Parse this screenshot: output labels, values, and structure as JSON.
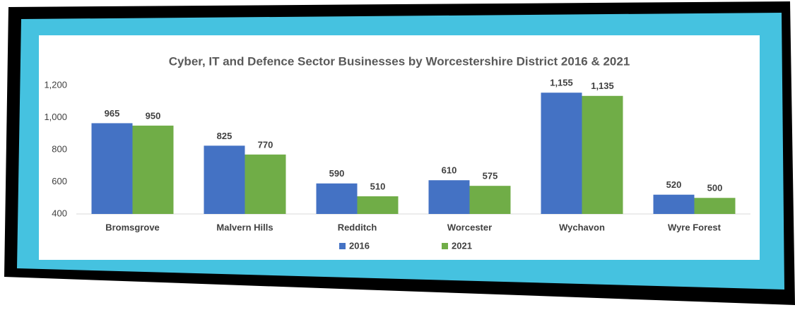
{
  "chart_data": {
    "type": "bar",
    "title": "Cyber, IT and Defence Sector Businesses by Worcestershire District 2016 & 2021",
    "categories": [
      "Bromsgrove",
      "Malvern Hills",
      "Redditch",
      "Worcester",
      "Wychavon",
      "Wyre Forest"
    ],
    "series": [
      {
        "name": "2016",
        "color": "#4472c4",
        "values": [
          965,
          825,
          590,
          610,
          1155,
          520
        ],
        "value_labels": [
          "965",
          "825",
          "590",
          "610",
          "1,155",
          "520"
        ]
      },
      {
        "name": "2021",
        "color": "#70ad47",
        "values": [
          950,
          770,
          510,
          575,
          1135,
          500
        ],
        "value_labels": [
          "950",
          "770",
          "510",
          "575",
          "1,135",
          "500"
        ]
      }
    ],
    "ylim": [
      400,
      1200
    ],
    "yticks": [
      400,
      600,
      800,
      {
        "value": 1000,
        "label": "1,000"
      },
      {
        "value": 1200,
        "label": "1,200"
      }
    ],
    "grid": false,
    "legend": "bottom"
  }
}
